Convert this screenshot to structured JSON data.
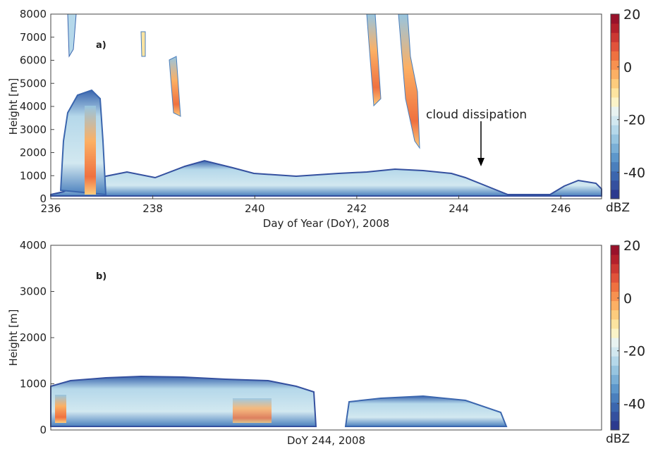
{
  "chart_data": [
    {
      "type": "heatmap",
      "panel_label": "a)",
      "xlabel": "Day of Year (DoY), 2008",
      "ylabel": "Height [m]",
      "xlim": [
        236,
        246.8
      ],
      "xticks": [
        236,
        238,
        240,
        242,
        244,
        246
      ],
      "ylim": [
        0,
        8000
      ],
      "yticks": [
        0,
        1000,
        2000,
        3000,
        4000,
        5000,
        6000,
        7000,
        8000
      ],
      "annotation": "cloud dissipation",
      "colorbar": {
        "label": "dBZ",
        "lim": [
          -50,
          20
        ],
        "ticks": [
          -40,
          -20,
          0,
          20
        ],
        "colors": [
          "#2c3a8f",
          "#34509f",
          "#3b66ae",
          "#4a7fbd",
          "#5d97cb",
          "#7aafd6",
          "#97c5e0",
          "#b5d8ea",
          "#d2e8f0",
          "#e9f3f1",
          "#fbf3c8",
          "#fde4a0",
          "#fdcc7d",
          "#fcb064",
          "#f79150",
          "#ef7140",
          "#e1533a",
          "#cc3832",
          "#b3202b",
          "#99112a"
        ]
      }
    },
    {
      "type": "heatmap",
      "panel_label": "b)",
      "xlabel": "DoY 244, 2008",
      "ylabel": "Height [m]",
      "ylim": [
        0,
        4000
      ],
      "yticks": [
        0,
        1000,
        2000,
        3000,
        4000
      ],
      "colorbar": {
        "label": "dBZ",
        "lim": [
          -50,
          20
        ],
        "ticks": [
          -40,
          -20,
          0,
          20
        ],
        "colors": [
          "#2c3a8f",
          "#34509f",
          "#3b66ae",
          "#4a7fbd",
          "#5d97cb",
          "#7aafd6",
          "#97c5e0",
          "#b5d8ea",
          "#d2e8f0",
          "#e9f3f1",
          "#fbf3c8",
          "#fde4a0",
          "#fdcc7d",
          "#fcb064",
          "#f79150",
          "#ef7140",
          "#e1533a",
          "#cc3832",
          "#b3202b",
          "#99112a"
        ]
      }
    }
  ]
}
